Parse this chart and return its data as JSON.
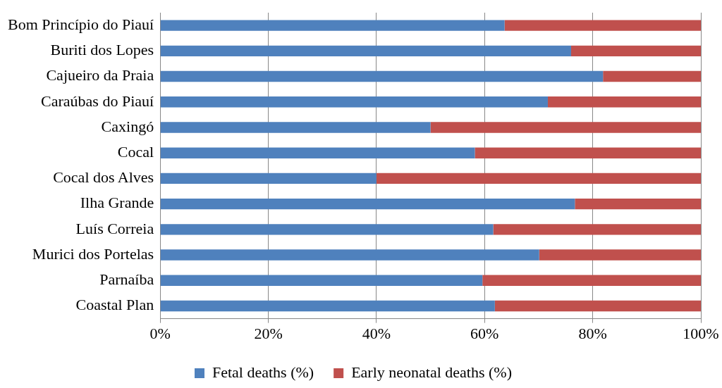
{
  "chart_data": {
    "type": "bar",
    "orientation": "horizontal",
    "stacked": true,
    "categories": [
      "Bom Princípio do Piauí",
      "Buriti dos Lopes",
      "Cajueiro da Praia",
      "Caraúbas do Piauí",
      "Caxingó",
      "Cocal",
      "Cocal dos Alves",
      "Ilha Grande",
      "Luís Correia",
      "Murici dos Portelas",
      "Parnaíba",
      "Coastal Plan"
    ],
    "series": [
      {
        "name": "Fetal deaths (%)",
        "color": "#4f81bd",
        "values": [
          63.7,
          76.0,
          81.9,
          71.7,
          50.0,
          58.2,
          40.0,
          76.7,
          61.6,
          70.1,
          59.6,
          61.9
        ]
      },
      {
        "name": "Early neonatal deaths (%)",
        "color": "#c0504d",
        "values": [
          36.3,
          24.0,
          18.1,
          28.3,
          50.0,
          41.8,
          60.0,
          23.3,
          38.4,
          29.9,
          40.4,
          38.1
        ]
      }
    ],
    "xlim": [
      0,
      100
    ],
    "xticks": [
      {
        "value": 0,
        "label": "0%"
      },
      {
        "value": 20,
        "label": "20%"
      },
      {
        "value": 40,
        "label": "40%"
      },
      {
        "value": 60,
        "label": "60%"
      },
      {
        "value": 80,
        "label": "80%"
      },
      {
        "value": 100,
        "label": "100%"
      }
    ],
    "grid": "x",
    "legend": "bottom"
  }
}
